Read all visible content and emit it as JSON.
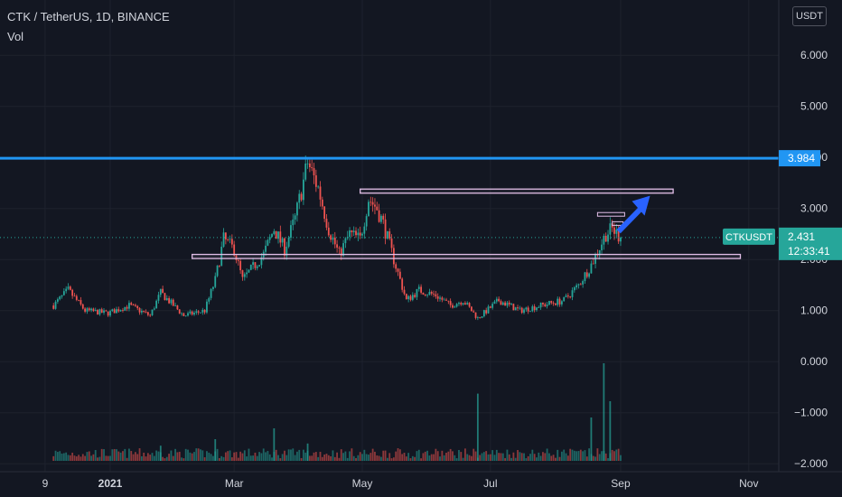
{
  "legend": {
    "title": "CTK / TetherUS, 1D, BINANCE",
    "volume_label": "Vol"
  },
  "currency": "USDT",
  "price_axis": {
    "ticks": [
      "6.000",
      "5.000",
      "4.000",
      "3.000",
      "2.000",
      "1.000",
      "0.000",
      "−1.000",
      "−2.000"
    ]
  },
  "time_axis": {
    "labels": [
      "9",
      "2021",
      "Mar",
      "May",
      "Jul",
      "Sep",
      "Nov"
    ]
  },
  "resistance": {
    "value": 3.984,
    "label": "3.984",
    "color": "#2196f3"
  },
  "last_price": {
    "symbol": "CTKUSDT",
    "price": "2.431",
    "countdown": "12:33:41",
    "color": "#26a69a"
  },
  "colors": {
    "up": "#26a69a",
    "down": "#ef5350",
    "zone": "#e1bee7",
    "arrow": "#2962ff",
    "background": "#131722"
  },
  "zones": [
    {
      "name": "upper-zone",
      "from": 3.3,
      "to": 3.38
    },
    {
      "name": "lower-zone",
      "from": 2.02,
      "to": 2.1
    }
  ],
  "chart_data": {
    "type": "candlestick",
    "title": "CTK / TetherUS, 1D, BINANCE",
    "ylim": [
      -2.2,
      6.9
    ],
    "series": [
      {
        "name": "CTKUSDT",
        "anchors": [
          [
            "2020-12-05",
            1.1
          ],
          [
            "2020-12-12",
            1.4
          ],
          [
            "2020-12-20",
            1.0
          ],
          [
            "2020-12-31",
            0.95
          ],
          [
            "2021-01-10",
            1.1
          ],
          [
            "2021-01-20",
            0.9
          ],
          [
            "2021-01-25",
            1.35
          ],
          [
            "2021-02-05",
            0.9
          ],
          [
            "2021-02-15",
            1.0
          ],
          [
            "2021-02-20",
            1.6
          ],
          [
            "2021-02-24",
            2.4
          ],
          [
            "2021-03-01",
            2.2
          ],
          [
            "2021-03-05",
            1.6
          ],
          [
            "2021-03-15",
            2.1
          ],
          [
            "2021-03-20",
            2.6
          ],
          [
            "2021-03-25",
            2.2
          ],
          [
            "2021-03-30",
            2.8
          ],
          [
            "2021-04-05",
            3.9
          ],
          [
            "2021-04-10",
            3.4
          ],
          [
            "2021-04-15",
            2.6
          ],
          [
            "2021-04-20",
            2.1
          ],
          [
            "2021-04-25",
            2.5
          ],
          [
            "2021-04-30",
            2.4
          ],
          [
            "2021-05-04",
            3.2
          ],
          [
            "2021-05-08",
            3.0
          ],
          [
            "2021-05-11",
            2.7
          ],
          [
            "2021-05-16",
            2.0
          ],
          [
            "2021-05-22",
            1.2
          ],
          [
            "2021-05-28",
            1.4
          ],
          [
            "2021-06-05",
            1.3
          ],
          [
            "2021-06-12",
            1.1
          ],
          [
            "2021-06-18",
            1.2
          ],
          [
            "2021-06-25",
            0.85
          ],
          [
            "2021-07-05",
            1.2
          ],
          [
            "2021-07-15",
            1.0
          ],
          [
            "2021-07-25",
            1.1
          ],
          [
            "2021-08-05",
            1.2
          ],
          [
            "2021-08-12",
            1.5
          ],
          [
            "2021-08-18",
            1.9
          ],
          [
            "2021-08-25",
            2.5
          ],
          [
            "2021-08-28",
            2.6
          ],
          [
            "2021-09-01",
            2.43
          ]
        ]
      }
    ],
    "volume_spikes": [
      [
        "2021-01-25",
        0.14
      ],
      [
        "2021-02-20",
        0.2
      ],
      [
        "2021-03-20",
        0.3
      ],
      [
        "2021-04-05",
        0.16
      ],
      [
        "2021-06-25",
        0.62
      ],
      [
        "2021-08-18",
        0.4
      ],
      [
        "2021-08-24",
        0.9
      ],
      [
        "2021-08-27",
        0.55
      ]
    ]
  }
}
